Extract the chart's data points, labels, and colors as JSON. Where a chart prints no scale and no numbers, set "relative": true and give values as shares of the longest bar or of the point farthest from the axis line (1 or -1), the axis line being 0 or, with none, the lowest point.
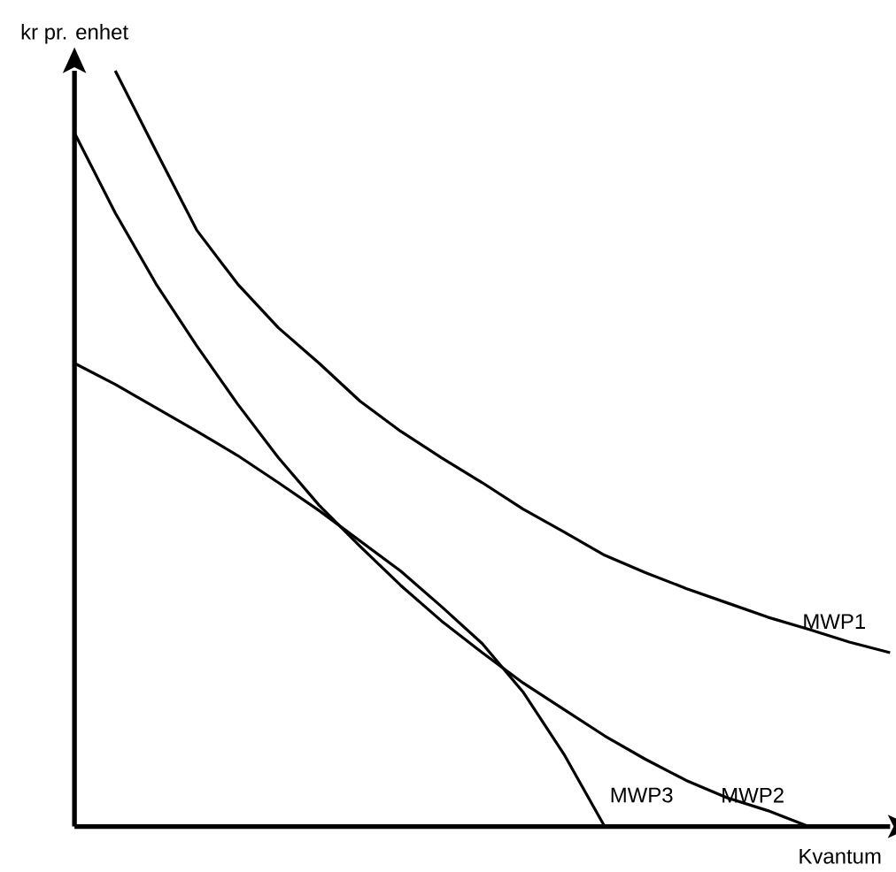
{
  "chart_data": {
    "type": "line",
    "relative": true,
    "xlabel": "Kvantum",
    "ylabel": "kr pr. enhet",
    "marker": "none",
    "line_style": "solid",
    "legend": false,
    "categories": [
      null,
      null,
      null,
      null,
      null,
      null,
      null,
      null,
      null,
      null,
      null,
      null,
      null,
      null,
      null,
      null,
      null,
      null,
      null,
      null,
      null
    ],
    "series": [
      {
        "name": "MWP1",
        "color": "#000000",
        "values": [
          null,
          1.0,
          0.894,
          0.789,
          0.718,
          0.66,
          0.613,
          0.563,
          0.523,
          0.488,
          0.455,
          0.42,
          0.39,
          0.359,
          0.336,
          0.315,
          0.296,
          0.277,
          0.261,
          0.244,
          0.23
        ]
      },
      {
        "name": "MWP2",
        "color": "#000000",
        "values": [
          0.918,
          0.812,
          0.718,
          0.636,
          0.559,
          0.488,
          0.425,
          0.371,
          0.319,
          0.272,
          0.23,
          0.19,
          0.155,
          0.12,
          0.089,
          0.061,
          0.038,
          0.021,
          0,
          null,
          null
        ]
      },
      {
        "name": "MWP3",
        "color": "#000000",
        "values": [
          0.613,
          0.585,
          0.554,
          0.523,
          0.491,
          0.455,
          0.418,
          0.378,
          0.338,
          0.291,
          0.242,
          0.178,
          0.096,
          0,
          null,
          null,
          null,
          null,
          null,
          null,
          null
        ]
      }
    ]
  }
}
